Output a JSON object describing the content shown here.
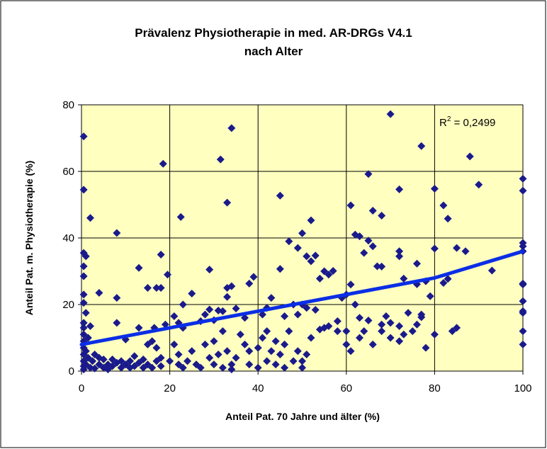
{
  "chart_data": {
    "type": "scatter",
    "title": [
      "Prävalenz Physiotherapie in med. AR-DRGs V4.1",
      "nach Alter"
    ],
    "x_label": "Anteil Pat. 70 Jahre und älter (%)",
    "y_label": "Anteil Pat. m. Physiotherapie (%)",
    "annotation": {
      "base": "R",
      "sup": "2",
      "rest": " = 0,2499"
    },
    "xlim": [
      0,
      100
    ],
    "xticks": [
      0,
      20,
      40,
      60,
      80,
      100
    ],
    "ylim": [
      0,
      80
    ],
    "yticks": [
      0,
      20,
      40,
      60,
      80
    ],
    "grid": true,
    "color": "#1a1a8c",
    "trend_color": "#0a2ee6",
    "x": [
      0.5,
      0.5,
      2,
      8,
      18.5,
      22.5,
      31.5,
      33,
      34,
      45,
      52,
      61,
      62,
      65,
      66,
      68,
      70,
      72,
      77,
      80,
      82,
      83,
      88,
      90,
      100,
      100,
      0.5,
      1,
      0.5,
      0.5,
      18,
      19.5,
      29,
      38,
      39,
      47,
      49,
      50,
      51,
      52,
      53,
      54,
      55,
      56,
      57,
      60,
      61,
      63,
      64,
      65,
      66,
      67,
      68,
      72,
      72,
      73,
      76,
      76,
      78,
      80,
      82,
      83,
      85,
      87,
      93,
      100,
      100,
      100,
      100,
      100,
      0.5,
      0.5,
      1,
      4,
      8,
      13,
      15,
      17,
      18,
      21,
      22,
      23,
      25,
      27,
      28,
      29,
      30,
      31,
      32,
      33,
      33,
      34,
      35,
      37,
      41,
      42,
      43,
      45,
      46,
      48,
      49,
      50,
      51,
      53,
      55,
      58,
      59,
      62,
      63,
      65,
      68,
      69,
      70,
      72,
      74,
      77,
      77,
      78,
      79,
      84,
      85,
      100,
      100,
      100,
      100,
      100,
      0.5,
      0.5,
      0.5,
      0.5,
      0.5,
      0.5,
      0.5,
      0.5,
      0.5,
      1,
      1,
      1.5,
      1.5,
      2,
      2,
      2.5,
      3,
      3,
      4,
      4,
      5,
      5,
      6,
      6,
      7,
      7,
      8,
      8,
      9,
      9,
      10,
      10,
      11,
      11,
      12,
      12,
      13,
      13,
      14,
      14,
      15,
      15,
      16,
      16,
      16.5,
      17,
      17,
      18,
      18,
      19,
      20,
      21,
      22,
      22,
      23,
      23,
      24,
      25,
      26,
      27,
      28,
      29,
      30,
      30,
      31,
      32,
      32,
      33,
      34,
      34,
      35,
      36,
      37,
      38,
      38,
      40,
      40,
      41,
      42,
      42,
      43,
      44,
      44,
      45,
      46,
      46,
      47,
      48,
      49,
      50,
      50,
      51,
      52,
      54,
      56,
      58,
      60,
      60,
      61,
      63,
      64,
      66,
      68,
      70,
      72,
      73,
      75,
      76,
      80
    ],
    "values": [
      70.5,
      54.5,
      46,
      41.5,
      62.3,
      46.3,
      63.6,
      50.6,
      73,
      52.7,
      45.3,
      49.8,
      41,
      59.2,
      48.2,
      46.7,
      77.2,
      54.6,
      67.6,
      54.8,
      49.8,
      45.8,
      64.5,
      56,
      57.8,
      54.2,
      35.5,
      34.5,
      31.5,
      28.5,
      35,
      29,
      30.5,
      26.3,
      28.3,
      39,
      37,
      41.4,
      34.5,
      33,
      34.7,
      27.8,
      30,
      29,
      30.1,
      23,
      26,
      40.5,
      35.5,
      39.2,
      37.5,
      31.5,
      31.4,
      36,
      34.5,
      27.8,
      32.3,
      26.1,
      27,
      36.8,
      26.5,
      27.7,
      37,
      36,
      30.2,
      38.5,
      37.5,
      36,
      26.3,
      26,
      23,
      20.5,
      17.5,
      23.5,
      22,
      31,
      25,
      25,
      25,
      16.5,
      14.5,
      20,
      23.3,
      15,
      17,
      18.5,
      15.3,
      18.2,
      18,
      25,
      22.3,
      25.5,
      18.8,
      16,
      17,
      19,
      22,
      30.7,
      16.5,
      20,
      17,
      20,
      19,
      18.4,
      13,
      15,
      22,
      20,
      16,
      15.2,
      14,
      16.5,
      14.5,
      13.5,
      17.5,
      17,
      16.2,
      7,
      22.5,
      12,
      13,
      21,
      17.5,
      12,
      8,
      18,
      0.5,
      1.5,
      3,
      5,
      7,
      9,
      11,
      13,
      14.5,
      2,
      6,
      4,
      10,
      13.5,
      1,
      3,
      0.8,
      5,
      2,
      4,
      1,
      3.5,
      2,
      0.5,
      3.5,
      1.5,
      2.5,
      14.5,
      3,
      1,
      2,
      9.5,
      1,
      3,
      4.5,
      1.5,
      2.5,
      13,
      1,
      3.5,
      2,
      8,
      1,
      9,
      13,
      3,
      7,
      1.5,
      4,
      14,
      3,
      8,
      5,
      2,
      1,
      13,
      3,
      6,
      2,
      1,
      8,
      4,
      2,
      9,
      5,
      1,
      12,
      6,
      0.5,
      2,
      4,
      11,
      8,
      2,
      6,
      1,
      7,
      10,
      3,
      12,
      6,
      2,
      9,
      5,
      1,
      8,
      12,
      3,
      6,
      1,
      3,
      5,
      10,
      12.5,
      13.5,
      12,
      8,
      12,
      6,
      10,
      12,
      8,
      12,
      10,
      9,
      11,
      12,
      14,
      11
    ],
    "trendline": {
      "x": [
        0,
        20,
        40,
        60,
        80,
        100
      ],
      "values": [
        8,
        13,
        18,
        23,
        28,
        36
      ]
    }
  }
}
